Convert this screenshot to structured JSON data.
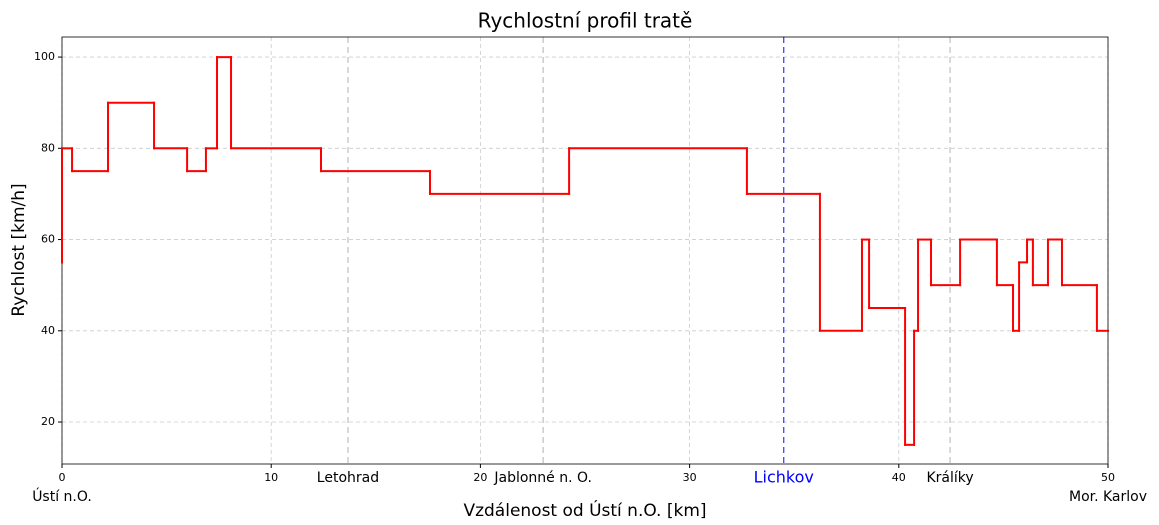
{
  "chart_data": {
    "type": "step",
    "title": "Rychlostní profil tratě",
    "xlabel": "Vzdálenost od Ústí n.O. [km]",
    "ylabel": "Rychlost [km/h]",
    "x": [
      0,
      0,
      0.48,
      2.2,
      4.4,
      5.98,
      6.88,
      7.41,
      8.08,
      12.38,
      17.59,
      24.24,
      32.74,
      36.23,
      38.24,
      38.58,
      40.3,
      40.73,
      40.92,
      41.54,
      42.93,
      44.69,
      45.46,
      45.75,
      46.13,
      46.41,
      47.13,
      47.8,
      49.47,
      50
    ],
    "values": [
      55,
      80,
      75,
      90,
      80,
      75,
      80,
      100,
      80,
      75,
      70,
      80,
      70,
      40,
      60,
      45,
      15,
      40,
      60,
      50,
      60,
      50,
      40,
      55,
      60,
      50,
      60,
      50,
      40,
      40
    ],
    "color": "#ff0000",
    "stations": [
      {
        "name": "Ústí n.O.",
        "km": 0,
        "color": "#000000"
      },
      {
        "name": "Letohrad",
        "km": 13.67,
        "color": "#000000"
      },
      {
        "name": "Jablonné n. O.",
        "km": 23.0,
        "color": "#000000"
      },
      {
        "name": "Lichkov",
        "km": 34.5,
        "color": "#0000ff"
      },
      {
        "name": "Králíky",
        "km": 42.45,
        "color": "#000000"
      },
      {
        "name": "Mor. Karlov",
        "km": 50,
        "color": "#000000"
      }
    ],
    "highlight_station": "Lichkov",
    "xlim": [
      0,
      50
    ],
    "xticks": [
      0,
      10,
      20,
      30,
      40,
      50
    ],
    "ylim": [
      10.8,
      104.4
    ],
    "yticks": [
      20,
      40,
      60,
      80,
      100
    ],
    "grid": true
  }
}
